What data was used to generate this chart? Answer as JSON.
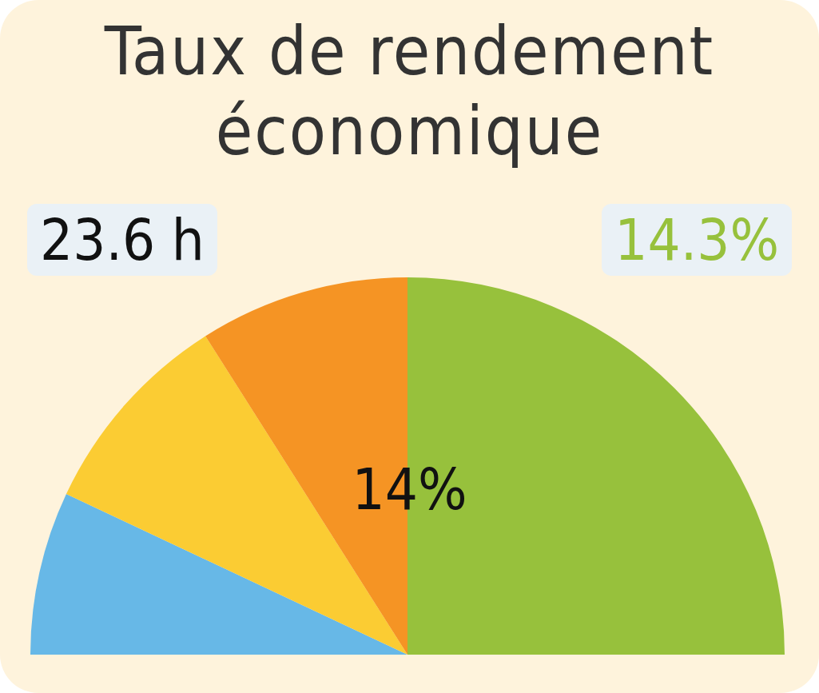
{
  "chart_data": {
    "type": "pie",
    "title": "Taux de rendement économique",
    "categories": [
      null,
      null,
      null,
      null
    ],
    "values": [
      14,
      18,
      18,
      50
    ],
    "colors": [
      "#67b8e7",
      "#fbcc33",
      "#f59424",
      "#97c13c"
    ],
    "annotations": [
      "23.6 h",
      "14.3%",
      "14%"
    ],
    "legend": false
  }
}
